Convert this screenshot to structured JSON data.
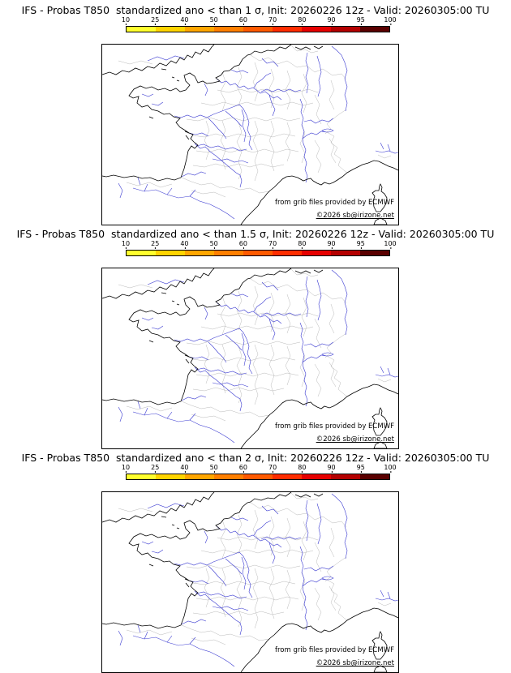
{
  "page": {
    "background": "#ffffff"
  },
  "colorbar": {
    "ticks": [
      "10",
      "25",
      "40",
      "50",
      "60",
      "70",
      "80",
      "90",
      "95",
      "100"
    ],
    "segment_colors": [
      "#ffff2e",
      "#ffd400",
      "#ffa600",
      "#ff7f00",
      "#ff5a00",
      "#ff2d00",
      "#e60000",
      "#b40000",
      "#5a0000"
    ],
    "border_color": "#000000"
  },
  "map": {
    "coastline_color": "#000000",
    "river_color": "#3b3bd1",
    "admin_border_color": "#b9b9b9"
  },
  "credits": {
    "ecmwf": "from grib files provided by ECMWF",
    "copyright": "©2026 sb@irizone.net"
  },
  "panels": [
    {
      "title": "IFS - Probas T850  standardized ano < than 1 σ, Init: 20260226 12z - Valid: 20260305:00 TU"
    },
    {
      "title": "IFS - Probas T850  standardized ano < than 1.5 σ, Init: 20260226 12z - Valid: 20260305:00 TU"
    },
    {
      "title": "IFS - Probas T850  standardized ano < than 2 σ, Init: 20260226 12z - Valid: 20260305:00 TU"
    }
  ]
}
